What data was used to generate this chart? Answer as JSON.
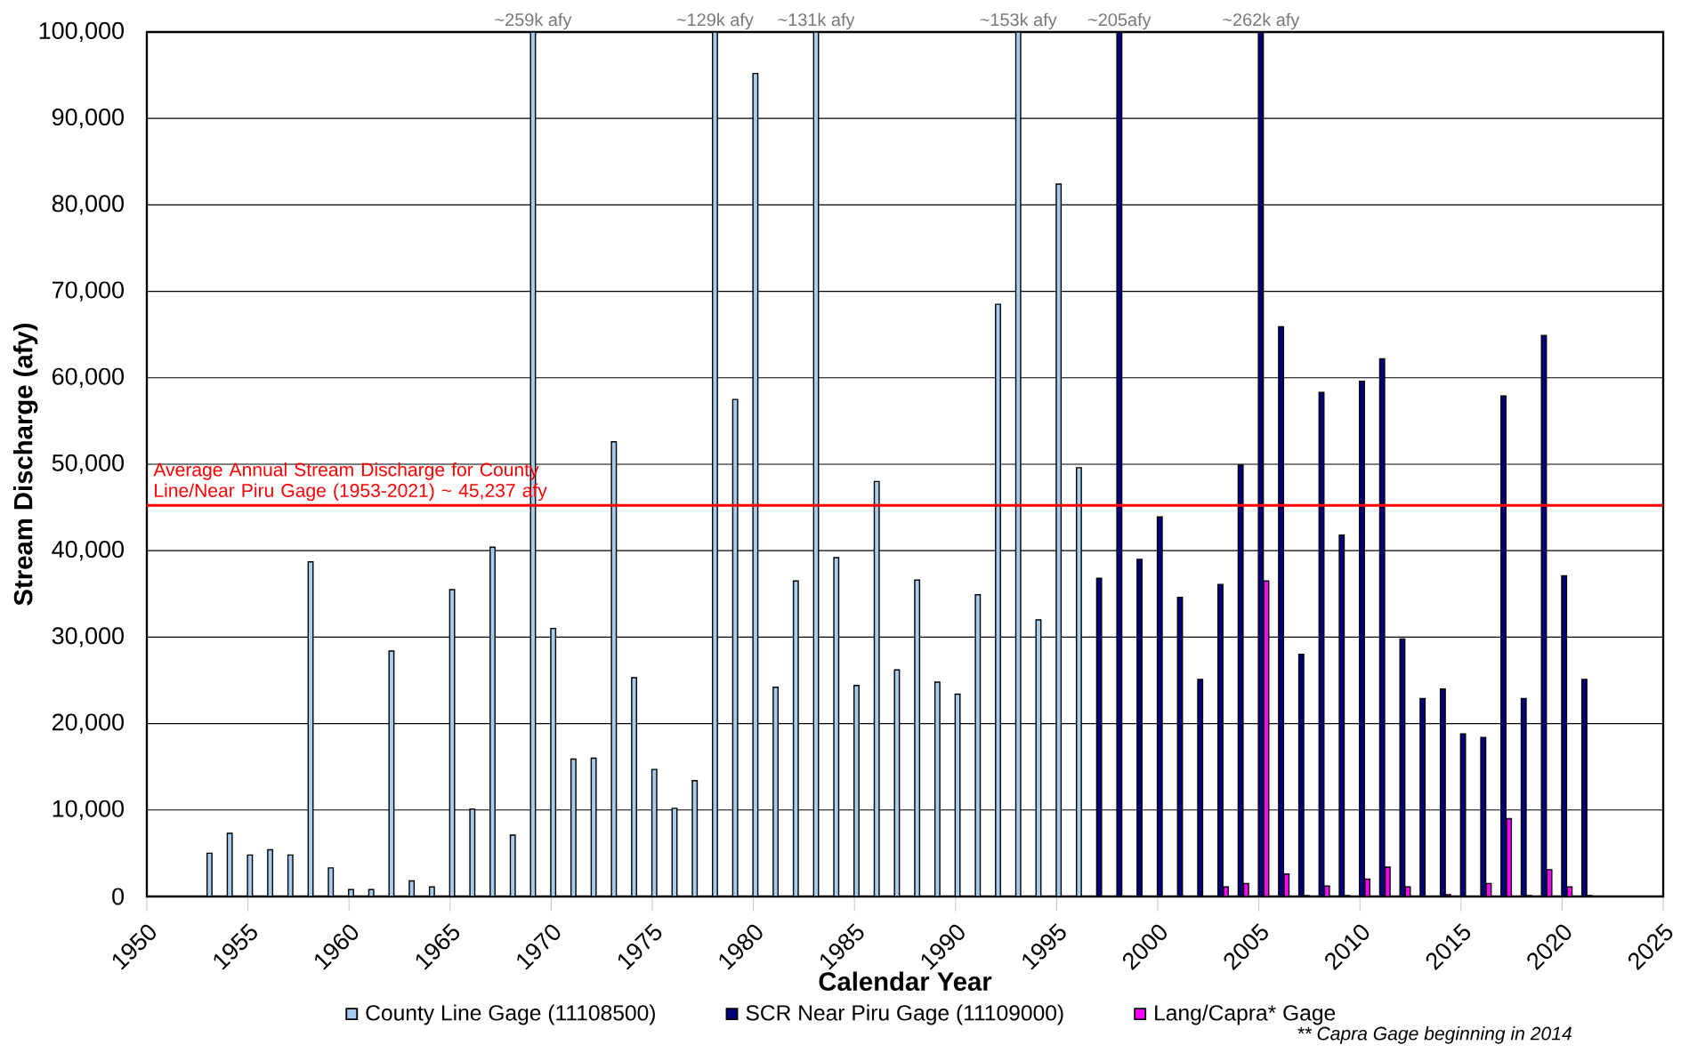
{
  "chart_data": {
    "type": "bar",
    "xlabel": "Calendar Year",
    "ylabel": "Stream Discharge (afy)",
    "series": [
      {
        "name": "County Line Gage (11108500)",
        "color": "#a6cdf0",
        "x": [
          1953,
          1954,
          1955,
          1956,
          1957,
          1958,
          1959,
          1960,
          1961,
          1962,
          1963,
          1964,
          1965,
          1966,
          1967,
          1968,
          1969,
          1970,
          1971,
          1972,
          1973,
          1974,
          1975,
          1976,
          1977,
          1978,
          1979,
          1980,
          1981,
          1982,
          1983,
          1984,
          1985,
          1986,
          1987,
          1988,
          1989,
          1990,
          1991,
          1992,
          1993,
          1994,
          1995,
          1996
        ],
        "values": [
          5000,
          7300,
          4800,
          5400,
          4800,
          38700,
          3300,
          800,
          800,
          28400,
          1800,
          1100,
          35500,
          10100,
          40400,
          7100,
          100000,
          31000,
          15900,
          16000,
          52600,
          25300,
          14700,
          10200,
          13400,
          100000,
          57500,
          95200,
          24200,
          36500,
          100000,
          39200,
          24400,
          48000,
          26200,
          36600,
          24800,
          23400,
          34900,
          68500,
          100000,
          32000,
          82400,
          49600
        ]
      },
      {
        "name": "SCR Near Piru Gage (11109000)",
        "color": "#000080",
        "x": [
          1997,
          1998,
          1999,
          2000,
          2001,
          2002,
          2003,
          2004,
          2005,
          2006,
          2007,
          2008,
          2009,
          2010,
          2011,
          2012,
          2013,
          2014,
          2015,
          2016,
          2017,
          2018,
          2019,
          2020,
          2021
        ],
        "values": [
          36800,
          100000,
          39000,
          43900,
          34600,
          25100,
          36100,
          49900,
          100000,
          65900,
          28000,
          58300,
          41800,
          59600,
          62200,
          29800,
          22900,
          24000,
          18800,
          18400,
          57900,
          22900,
          64900,
          37100,
          25100
        ]
      },
      {
        "name": "Lang/Capra* Gage",
        "color": "#ff00ff",
        "x": [
          2003,
          2004,
          2005,
          2006,
          2007,
          2008,
          2009,
          2010,
          2011,
          2012,
          2013,
          2014,
          2015,
          2016,
          2017,
          2018,
          2019,
          2020,
          2021
        ],
        "values": [
          1100,
          1500,
          36500,
          2600,
          100,
          1200,
          100,
          2000,
          3400,
          1100,
          null,
          200,
          null,
          1500,
          9000,
          100,
          3100,
          1100,
          100
        ]
      }
    ],
    "xlim": [
      1950,
      2025
    ],
    "xticks": [
      1950,
      1955,
      1960,
      1965,
      1970,
      1975,
      1980,
      1985,
      1990,
      1995,
      2000,
      2005,
      2010,
      2015,
      2020,
      2025
    ],
    "ylim": [
      0,
      100000
    ],
    "yticks": [
      0,
      {
        "value": 10000,
        "label": "10,000"
      },
      {
        "value": 20000,
        "label": "20,000"
      },
      {
        "value": 30000,
        "label": "30,000"
      },
      {
        "value": 40000,
        "label": "40,000"
      },
      {
        "value": 50000,
        "label": "50,000"
      },
      {
        "value": 60000,
        "label": "60,000"
      },
      {
        "value": 70000,
        "label": "70,000"
      },
      {
        "value": 80000,
        "label": "80,000"
      },
      {
        "value": 90000,
        "label": "90,000"
      },
      {
        "value": 100000,
        "label": "100,000"
      }
    ],
    "grid": "y",
    "legend": "bottom",
    "ref_lines": [
      {
        "axis": "y",
        "value": 45237,
        "label": "Average Annual Stream Discharge for County Line/Near Piru Gage (1953-2021) ~ 45,237 afy",
        "color": "#ff0000"
      }
    ],
    "annotations": [
      {
        "text": "~259k afy",
        "x": 1969,
        "y": 100000
      },
      {
        "text": "~129k afy",
        "x": 1978,
        "y": 100000
      },
      {
        "text": "~131k afy",
        "x": 1983,
        "y": 100000
      },
      {
        "text": "~153k afy",
        "x": 1993,
        "y": 100000
      },
      {
        "text": "~205afy",
        "x": 1998,
        "y": 100000
      },
      {
        "text": "~262k afy",
        "x": 2005,
        "y": 100000
      },
      "** Capra Gage beginning in 2014"
    ]
  }
}
